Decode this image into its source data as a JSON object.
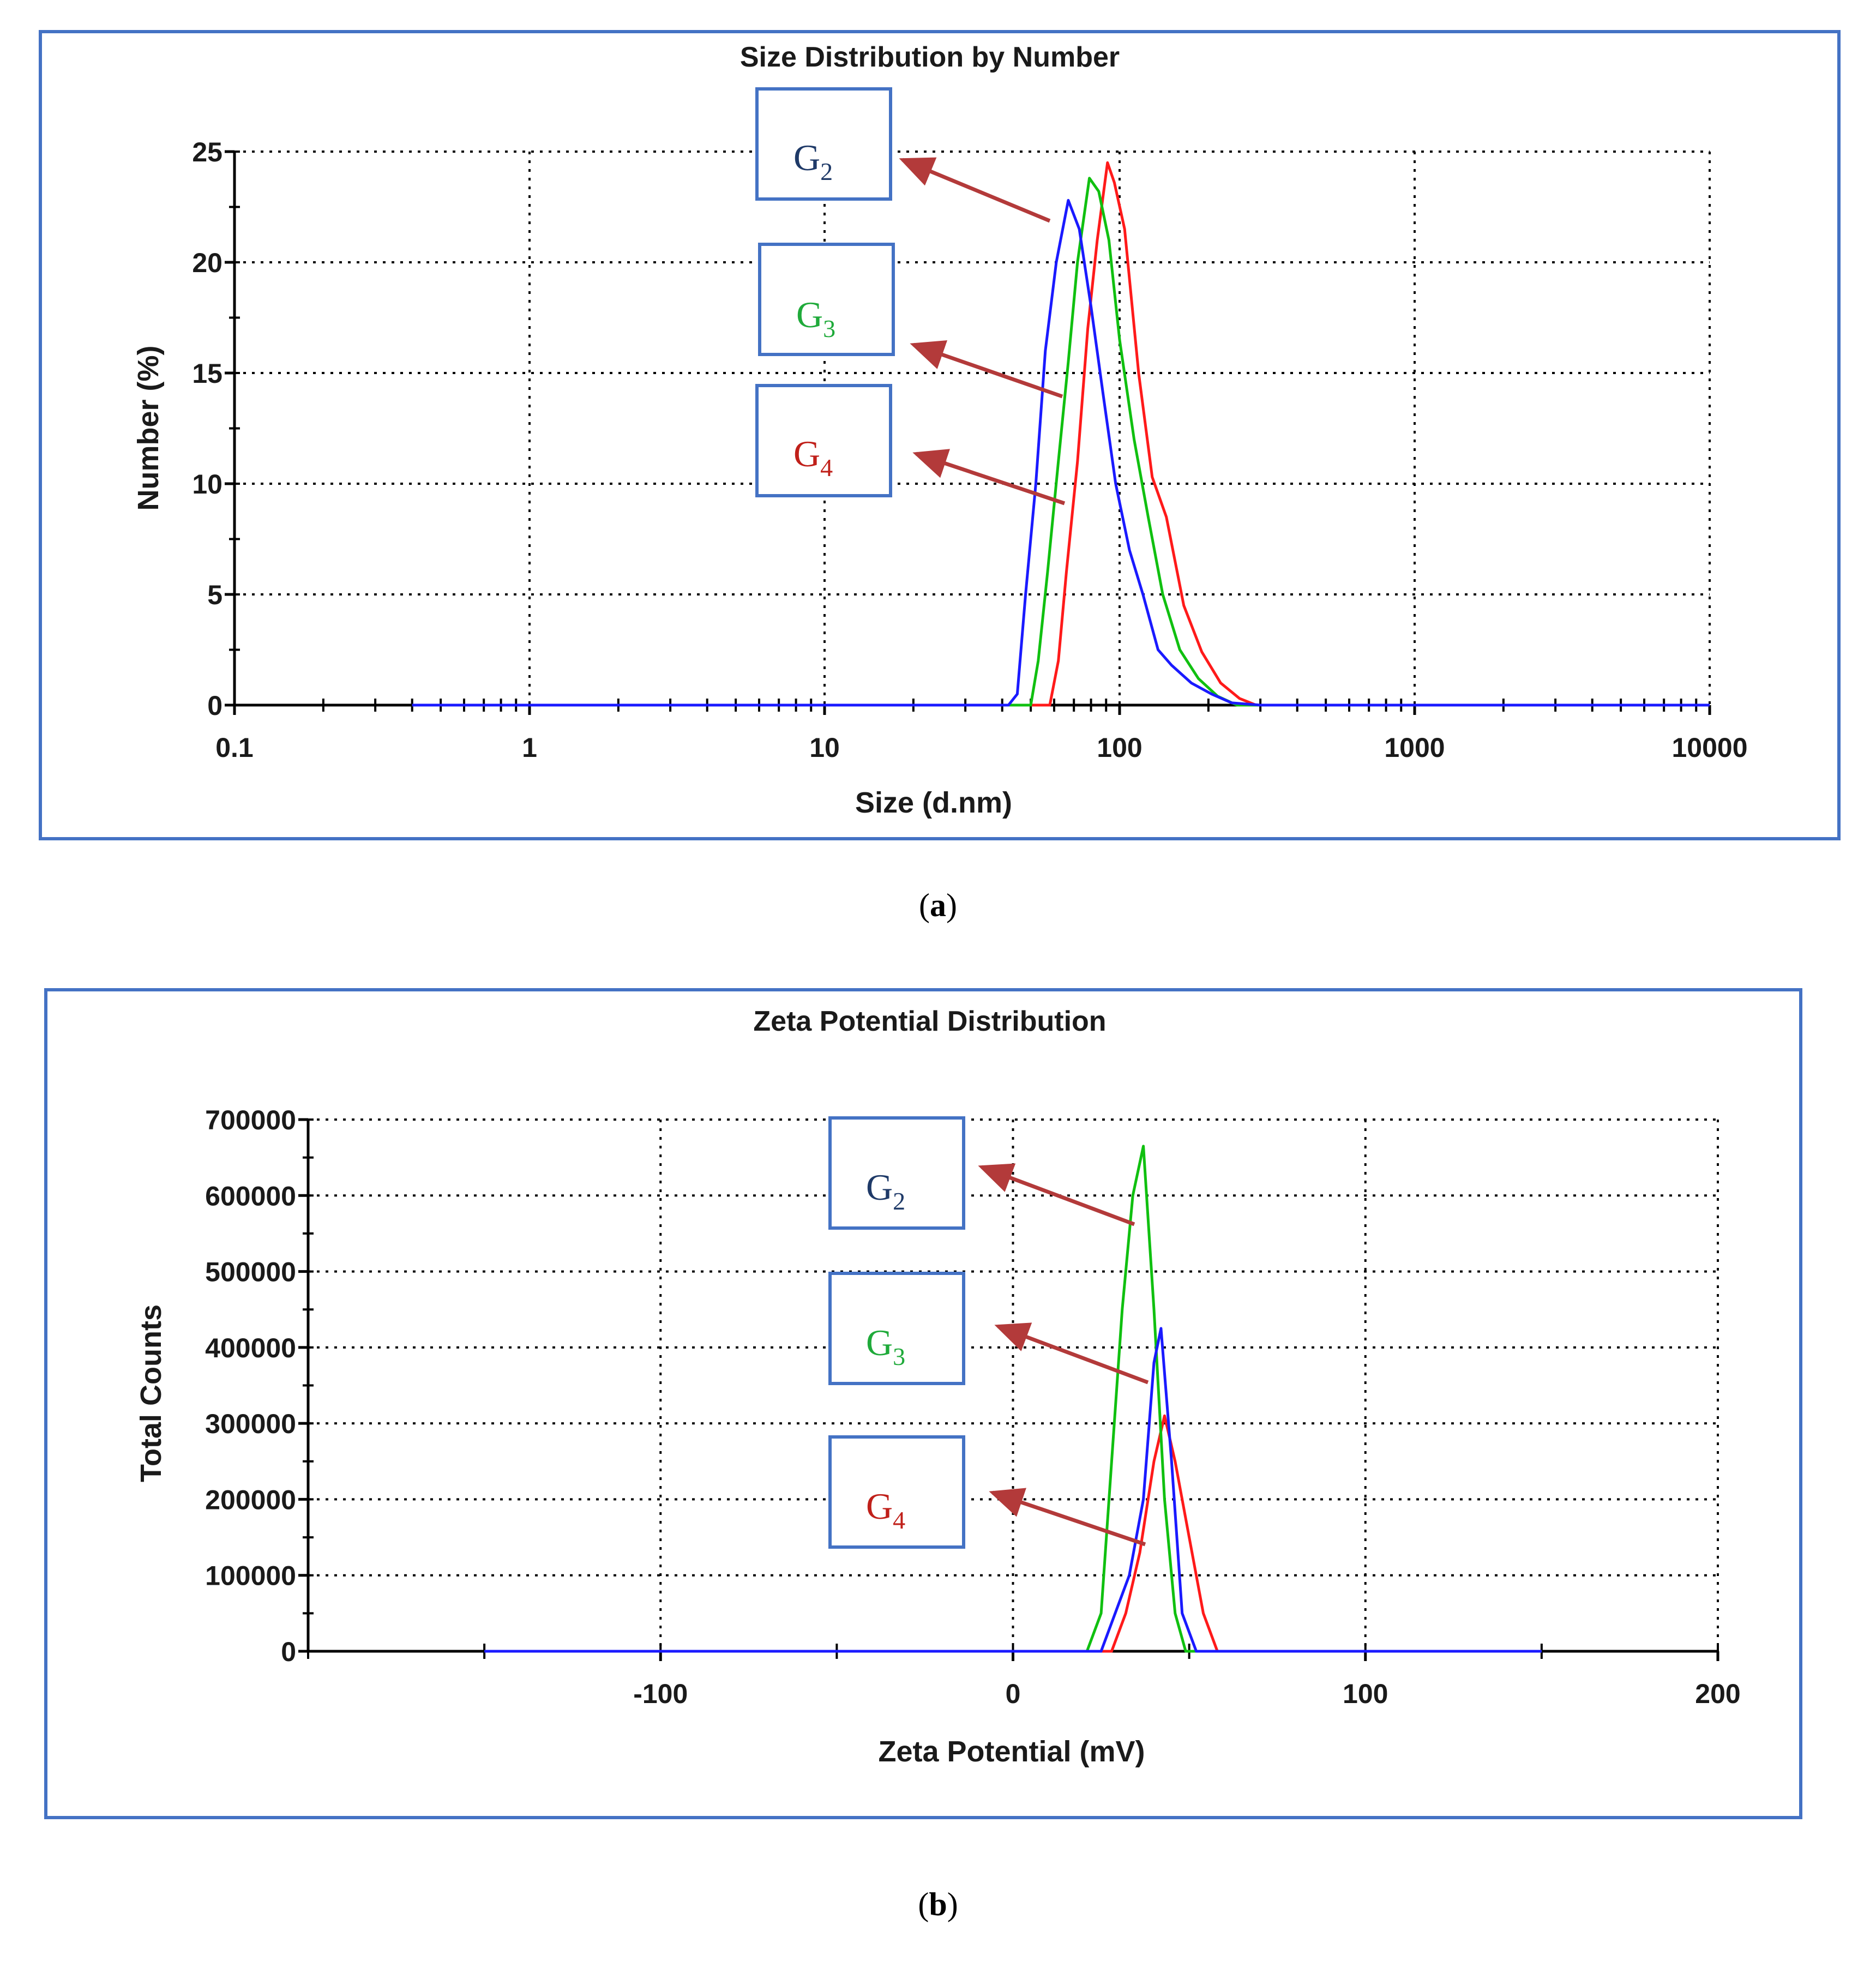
{
  "colors": {
    "frame": "#4472c4",
    "arrow": "#b33a3a",
    "G2": "#1f3a68",
    "G3": "#1faa3a",
    "G4": "#c0201a"
  },
  "captions": {
    "a_open": "(",
    "a_letter": "a",
    "a_close": ")",
    "b_open": "(",
    "b_letter": "b",
    "b_close": ")"
  },
  "callout_labels": [
    {
      "id": "G2",
      "main": "G",
      "sub": "2"
    },
    {
      "id": "G3",
      "main": "G",
      "sub": "3"
    },
    {
      "id": "G4",
      "main": "G",
      "sub": "4"
    }
  ],
  "chart_data": [
    {
      "type": "line",
      "title": "Size Distribution by Number",
      "xlabel": "Size (d.nm)",
      "ylabel": "Number (%)",
      "xscale": "log",
      "xlim": [
        0.1,
        10000
      ],
      "ylim": [
        0,
        25
      ],
      "grid": true,
      "x_ticks": [
        0.1,
        1,
        10,
        100,
        1000,
        10000
      ],
      "x_tick_labels": [
        "0.1",
        "1",
        "10",
        "100",
        "1000",
        "10000"
      ],
      "y_ticks": [
        0,
        5,
        10,
        15,
        20,
        25
      ],
      "y_tick_labels": [
        "0",
        "5",
        "10",
        "15",
        "20",
        "25"
      ],
      "series": [
        {
          "name": "G4",
          "color": "#ff1a1a",
          "x": [
            0.4,
            58,
            62,
            66,
            72,
            78,
            84,
            91,
            96,
            104,
            116,
            129,
            144,
            165,
            190,
            220,
            255,
            290,
            400,
            10000
          ],
          "y": [
            0,
            0,
            2,
            6,
            11,
            17,
            21,
            24.5,
            23.6,
            21.5,
            15,
            10.3,
            8.5,
            4.5,
            2.4,
            1.0,
            0.3,
            0,
            0,
            0
          ]
        },
        {
          "name": "G3",
          "color": "#10c010",
          "x": [
            0.4,
            50,
            53,
            57,
            62,
            67,
            72,
            79,
            85,
            92,
            100,
            112,
            125,
            140,
            160,
            185,
            215,
            250,
            400,
            10000
          ],
          "y": [
            0,
            0,
            2,
            6,
            11,
            15.5,
            20,
            23.8,
            23.2,
            21,
            16.5,
            12,
            8.5,
            5,
            2.5,
            1.2,
            0.4,
            0,
            0,
            0
          ]
        },
        {
          "name": "G2",
          "color": "#1a1aff",
          "x": [
            0.4,
            42,
            45,
            48,
            52,
            56,
            61,
            67,
            73,
            80,
            88,
            97,
            108,
            120,
            135,
            150,
            175,
            205,
            240,
            300,
            10000
          ],
          "y": [
            0,
            0,
            0.5,
            5,
            10,
            16,
            20,
            22.8,
            21.5,
            18,
            14,
            10,
            7,
            5,
            2.5,
            1.8,
            1,
            0.5,
            0.1,
            0,
            0
          ]
        }
      ],
      "annotations": [
        {
          "label": "G2",
          "points_to_series": "G2"
        },
        {
          "label": "G3",
          "points_to_series": "G3"
        },
        {
          "label": "G4",
          "points_to_series": "G4"
        }
      ]
    },
    {
      "type": "line",
      "title": "Zeta Potential Distribution",
      "xlabel": "Zeta Potential (mV)",
      "ylabel": "Total Counts",
      "xlim": [
        -200,
        200
      ],
      "ylim": [
        0,
        700000
      ],
      "grid": true,
      "x_ticks": [
        -100,
        0,
        100,
        200
      ],
      "x_tick_labels": [
        "-100",
        "0",
        "100",
        "200"
      ],
      "y_ticks": [
        0,
        100000,
        200000,
        300000,
        400000,
        500000,
        600000,
        700000
      ],
      "y_tick_labels": [
        "0",
        "100000",
        "200000",
        "300000",
        "400000",
        "500000",
        "600000",
        "700000"
      ],
      "series": [
        {
          "name": "G4",
          "color": "#ff1a1a",
          "x": [
            -150,
            28,
            32,
            36,
            40,
            43,
            46,
            50,
            54,
            58,
            150
          ],
          "y": [
            0,
            0,
            50000,
            130000,
            250000,
            310000,
            250000,
            150000,
            50000,
            0,
            0
          ]
        },
        {
          "name": "G3",
          "color": "#10c010",
          "x": [
            -150,
            21,
            25,
            28,
            31,
            34,
            37,
            40,
            43,
            46,
            49,
            150
          ],
          "y": [
            0,
            0,
            50000,
            250000,
            450000,
            600000,
            665000,
            450000,
            200000,
            50000,
            0,
            0
          ]
        },
        {
          "name": "G2",
          "color": "#1a1aff",
          "x": [
            -150,
            25,
            29,
            33,
            37,
            40,
            42,
            45,
            48,
            52,
            150
          ],
          "y": [
            0,
            0,
            50000,
            100000,
            200000,
            380000,
            425000,
            250000,
            50000,
            0,
            0
          ]
        }
      ],
      "annotations": [
        {
          "label": "G2",
          "points_to_series": "G3"
        },
        {
          "label": "G3",
          "points_to_series": "G2"
        },
        {
          "label": "G4",
          "points_to_series": "G4"
        }
      ]
    }
  ]
}
